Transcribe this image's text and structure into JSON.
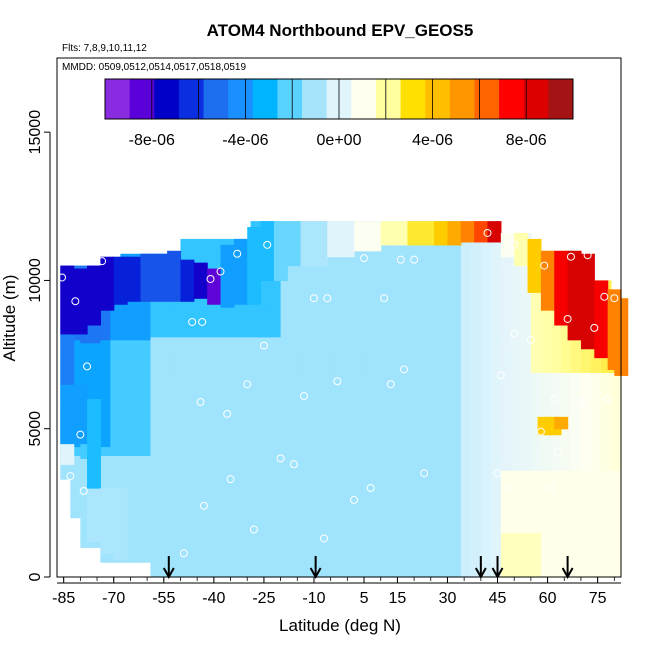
{
  "chart_data": {
    "type": "heatmap",
    "title": "ATOM4 Northbound EPV_GEOS5",
    "subtitle_flights": "Flts: 7,8,9,10,11,12",
    "subtitle_dates": "MMDD: 0509,0512,0514,0517,0518,0519",
    "xlabel": "Latitude (deg N)",
    "ylabel": "Altitude (m)",
    "xlim": [
      -87,
      82
    ],
    "ylim": [
      0,
      17500
    ],
    "x_ticks": [
      -85,
      -70,
      -55,
      -40,
      -25,
      -10,
      5,
      15,
      30,
      45,
      60,
      75
    ],
    "y_ticks": [
      0,
      5000,
      10000,
      15000
    ],
    "colorbar": {
      "range": [
        -1e-05,
        1e-05
      ],
      "tick_values": [
        -8e-06,
        -4e-06,
        0,
        4e-06,
        8e-06
      ],
      "tick_labels": [
        "-8e-06",
        "-4e-06",
        "0e+00",
        "4e-06",
        "8e-06"
      ],
      "colors": [
        "#8a2be2",
        "#5a00d8",
        "#0000c8",
        "#0a2ee0",
        "#1e6ef0",
        "#1a90ff",
        "#00b4ff",
        "#5ad2ff",
        "#a6e4fc",
        "#e0f4fb",
        "#fffff0",
        "#ffffa0",
        "#ffe000",
        "#ffbe00",
        "#ff9600",
        "#ff6400",
        "#ff0000",
        "#dc0000",
        "#a51414"
      ]
    },
    "grid": false,
    "profile_marker_latitudes": [
      -53.5,
      -9.5,
      40,
      45,
      66
    ],
    "sample_points": [
      [
        -85.5,
        10100
      ],
      [
        -81.5,
        9300
      ],
      [
        -78,
        7100
      ],
      [
        -73.5,
        10650
      ],
      [
        -80,
        4800
      ],
      [
        -83,
        3400
      ],
      [
        -79,
        2900
      ],
      [
        -46.5,
        8600
      ],
      [
        -43.5,
        8600
      ],
      [
        -41,
        10050
      ],
      [
        -38,
        10300
      ],
      [
        -33,
        10900
      ],
      [
        -24,
        11200
      ],
      [
        -44,
        5900
      ],
      [
        -36,
        5500
      ],
      [
        -35,
        3300
      ],
      [
        -30,
        6500
      ],
      [
        -25,
        7800
      ],
      [
        -13,
        6100
      ],
      [
        -20,
        4000
      ],
      [
        -16,
        3800
      ],
      [
        -10,
        9400
      ],
      [
        -6,
        9400
      ],
      [
        -3,
        6600
      ],
      [
        5,
        10750
      ],
      [
        11,
        9400
      ],
      [
        16,
        10700
      ],
      [
        20,
        10700
      ],
      [
        13,
        6500
      ],
      [
        17,
        7000
      ],
      [
        7,
        3000
      ],
      [
        2,
        2600
      ],
      [
        -7,
        1300
      ],
      [
        -28,
        1600
      ],
      [
        -43,
        2400
      ],
      [
        -49,
        800
      ],
      [
        23,
        3500
      ],
      [
        42,
        11600
      ],
      [
        50,
        11200
      ],
      [
        59,
        10500
      ],
      [
        67,
        10800
      ],
      [
        72,
        10850
      ],
      [
        77,
        9450
      ],
      [
        74,
        8400
      ],
      [
        66,
        8700
      ],
      [
        55,
        8000
      ],
      [
        50,
        8200
      ],
      [
        46,
        6800
      ],
      [
        62,
        6000
      ],
      [
        70,
        5900
      ],
      [
        58,
        4900
      ],
      [
        63,
        4200
      ],
      [
        45,
        3500
      ],
      [
        48,
        3000
      ],
      [
        61,
        3000
      ],
      [
        80,
        9400
      ],
      [
        78,
        6000
      ]
    ],
    "grid_cells_note": "",
    "cells": [
      [
        -86,
        3800,
        4500,
        0.0
      ],
      [
        -86,
        4500,
        6500,
        -4e-06
      ],
      [
        -86,
        6500,
        8200,
        -5e-06
      ],
      [
        -86,
        8200,
        10500,
        -8e-06
      ],
      [
        -82,
        4500,
        6500,
        -4e-06
      ],
      [
        -82,
        8200,
        10400,
        -8e-06
      ],
      [
        -78,
        1200,
        3000,
        -1e-06
      ],
      [
        -78,
        3000,
        6000,
        -3e-06
      ],
      [
        -78,
        8500,
        10500,
        -8e-06
      ],
      [
        -74,
        800,
        3000,
        -1e-06
      ],
      [
        -74,
        9000,
        10800,
        -8e-06
      ],
      [
        -70,
        600,
        3000,
        -1e-06
      ],
      [
        -70,
        9200,
        10800,
        -7e-06
      ],
      [
        -66,
        9300,
        10800,
        -7e-06
      ],
      [
        -62,
        9300,
        10900,
        -6e-06
      ],
      [
        -58,
        9300,
        10900,
        -6e-06
      ],
      [
        -54,
        9300,
        11000,
        -6e-06
      ],
      [
        -50,
        9300,
        10700,
        -7e-06
      ],
      [
        -46,
        9400,
        10600,
        -8e-06
      ],
      [
        -42,
        9200,
        10400,
        -9e-06
      ],
      [
        -38,
        9100,
        11200,
        -4e-06
      ],
      [
        -34,
        9200,
        11400,
        -4e-06
      ],
      [
        -30,
        9200,
        11800,
        -3e-06
      ],
      [
        -26,
        10000,
        12000,
        -3e-06
      ],
      [
        -22,
        10000,
        12000,
        -2e-06
      ],
      [
        -18,
        10500,
        12000,
        -2e-06
      ],
      [
        -14,
        10500,
        12000,
        -1e-06
      ],
      [
        -10,
        10500,
        12000,
        -1e-06
      ],
      [
        -6,
        10800,
        12000,
        0.0
      ],
      [
        -2,
        10800,
        12000,
        0.0
      ],
      [
        2,
        11000,
        12000,
        1e-06
      ],
      [
        6,
        11000,
        12000,
        1e-06
      ],
      [
        10,
        11200,
        12000,
        2e-06
      ],
      [
        14,
        11200,
        12000,
        2e-06
      ],
      [
        18,
        11200,
        12000,
        3e-06
      ],
      [
        22,
        11200,
        12000,
        3e-06
      ],
      [
        26,
        11200,
        12000,
        4e-06
      ],
      [
        30,
        11200,
        12000,
        5e-06
      ],
      [
        34,
        11300,
        12000,
        6e-06
      ],
      [
        38,
        11300,
        12000,
        7e-06
      ],
      [
        42,
        11300,
        12000,
        9e-06
      ],
      [
        46,
        10800,
        11600,
        1e-06
      ],
      [
        50,
        10500,
        11600,
        2e-06
      ],
      [
        54,
        9600,
        11400,
        4e-06
      ],
      [
        58,
        9000,
        11000,
        6e-06
      ],
      [
        62,
        8500,
        11000,
        8e-06
      ],
      [
        66,
        8000,
        11000,
        9e-06
      ],
      [
        70,
        7700,
        10900,
        9e-06
      ],
      [
        74,
        7400,
        10000,
        8e-06
      ],
      [
        78,
        7000,
        9700,
        6e-06
      ],
      [
        80,
        6800,
        9400,
        6e-06
      ],
      [
        57,
        4800,
        5400,
        4e-06
      ],
      [
        60,
        4800,
        5400,
        4e-06
      ],
      [
        62,
        5000,
        5400,
        5e-06
      ]
    ]
  }
}
